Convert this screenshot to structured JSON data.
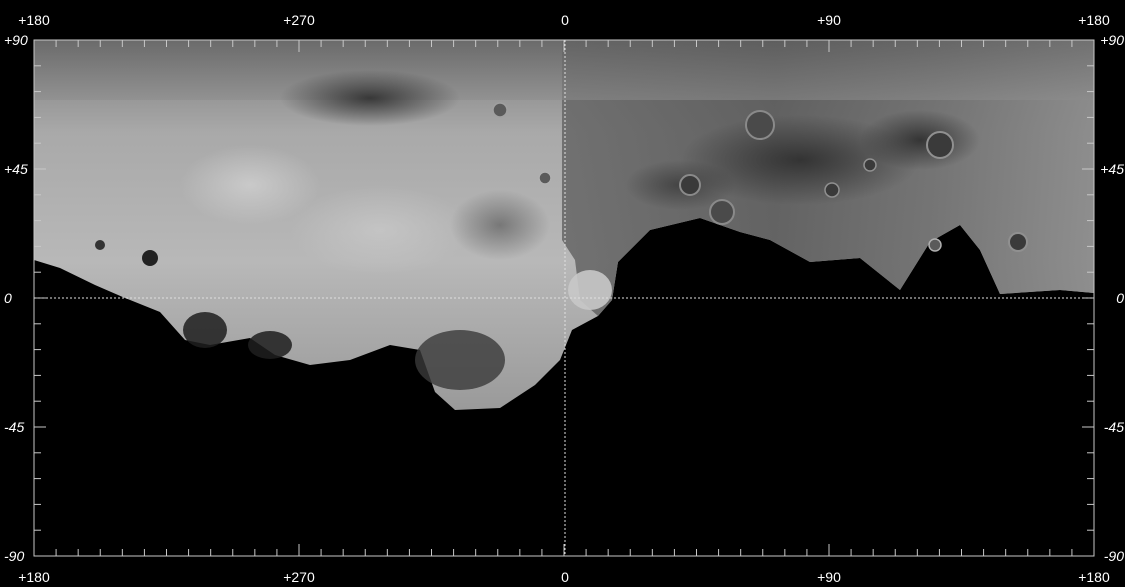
{
  "map": {
    "longitude_labels_top": [
      "+180",
      "+270",
      "0",
      "+90",
      "+180"
    ],
    "longitude_labels_bottom": [
      "+180",
      "+270",
      "0",
      "+90",
      "+180"
    ],
    "latitude_labels_left": [
      "+90",
      "+45",
      "0",
      "-45",
      "-90"
    ],
    "latitude_labels_right": [
      "+90",
      "+45",
      "0",
      "-45",
      "-90"
    ],
    "longitudes": [
      180,
      270,
      0,
      90,
      180
    ],
    "latitudes": [
      90,
      45,
      0,
      -45,
      -90
    ],
    "colors": {
      "background": "#000000",
      "surface_light": "#b4b4b4",
      "surface_dark": "#3c3c3c",
      "grid": "#c8c8c8"
    }
  }
}
